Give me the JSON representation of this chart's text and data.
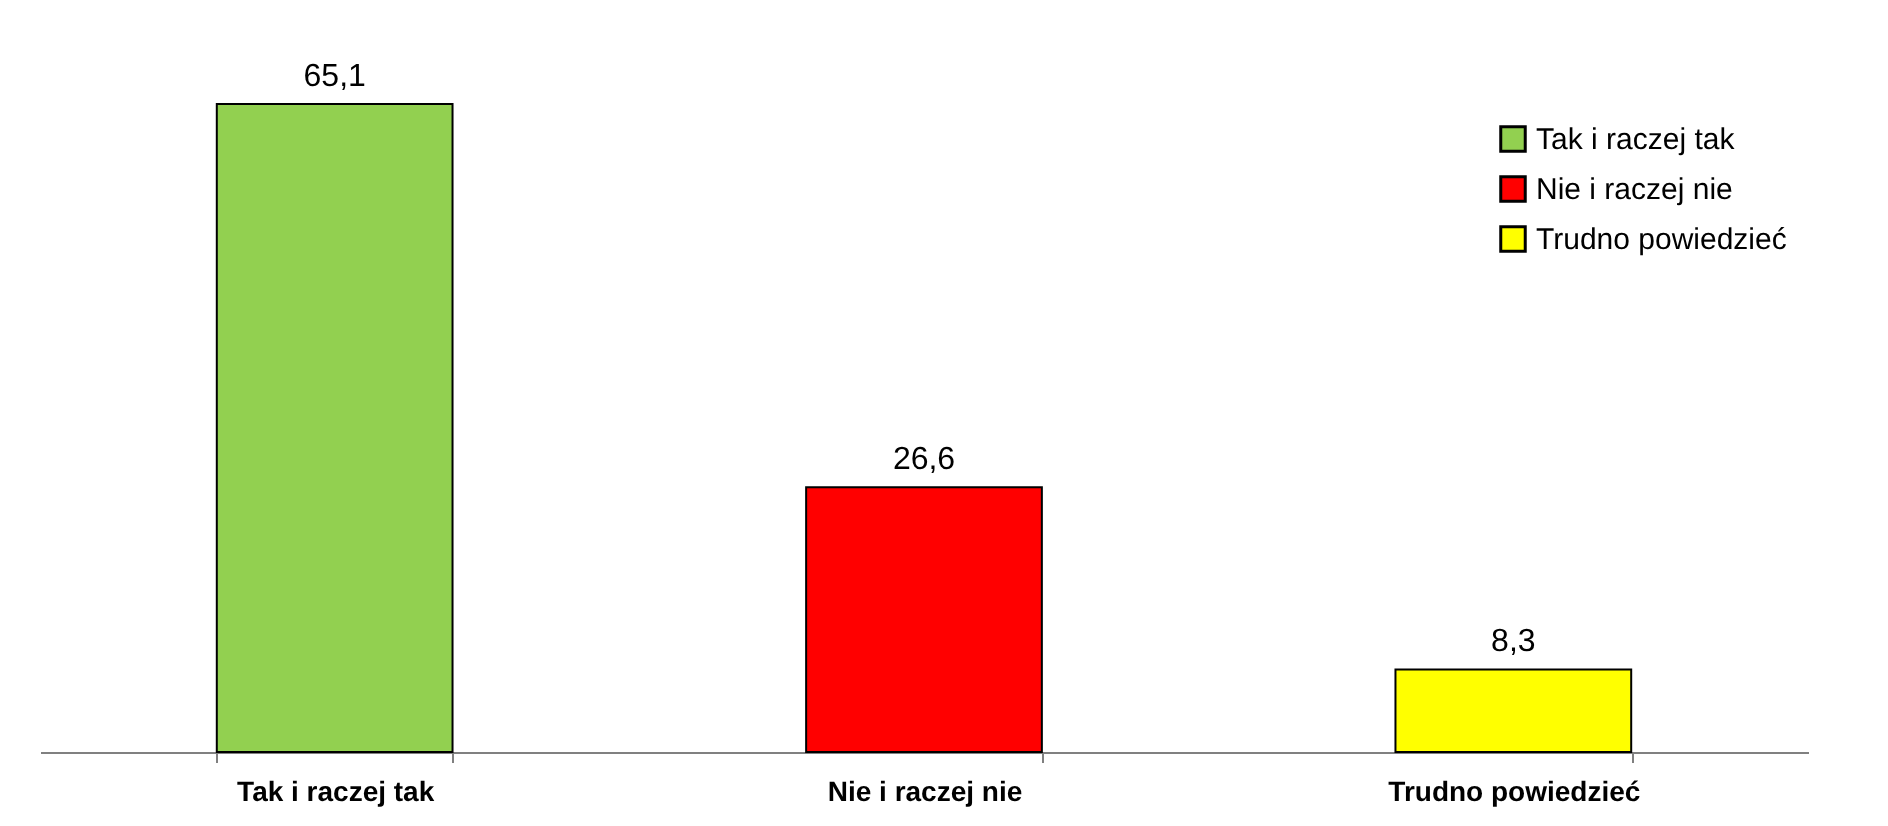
{
  "chart_data": {
    "type": "bar",
    "categories": [
      "Tak i raczej tak",
      "Nie i raczej nie",
      "Trudno powiedzieć"
    ],
    "series": [
      {
        "name": "Tak i raczej tak",
        "color": "#92d050",
        "values": [
          65.1,
          null,
          null
        ],
        "value_labels": [
          "65,1",
          null,
          null
        ]
      },
      {
        "name": "Nie i raczej nie",
        "color": "#ff0000",
        "values": [
          null,
          26.6,
          null
        ],
        "value_labels": [
          null,
          "26,6",
          null
        ]
      },
      {
        "name": "Trudno powiedzieć",
        "color": "#ffff00",
        "values": [
          null,
          null,
          8.3
        ],
        "value_labels": [
          null,
          null,
          "8,3"
        ]
      }
    ],
    "legend": "top right"
  }
}
